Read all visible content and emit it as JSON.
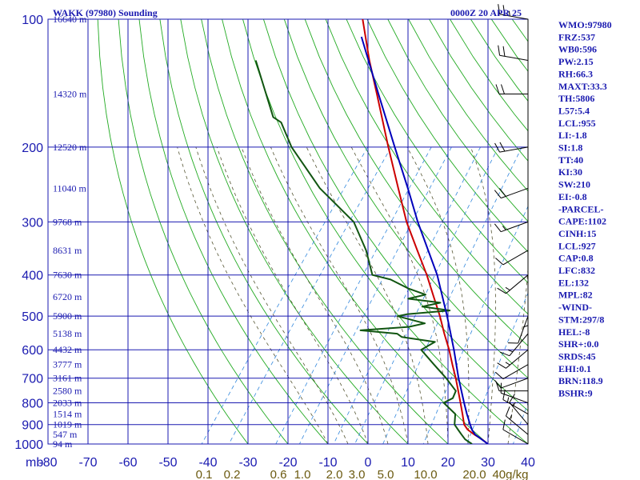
{
  "header": {
    "title": "WAKK (97980) Sounding",
    "datetime": "0000Z 20 APR 25"
  },
  "colors": {
    "grid": "#1a1ab0",
    "dry_adiabat": "#22aa22",
    "moist_adiabat": "#555533",
    "mixing_ratio": "#3388dd",
    "temperature": "#cc0000",
    "dewpoint": "#115511",
    "parcel": "#0000bb",
    "wind": "#000000"
  },
  "chart_data": {
    "type": "skew-t log-p sounding",
    "pressure_axis": {
      "unit": "mb",
      "levels": [
        100,
        200,
        300,
        400,
        500,
        600,
        700,
        800,
        900,
        1000
      ],
      "range": [
        100,
        1000
      ],
      "scale": "log"
    },
    "height_labels": [
      {
        "p": 100,
        "label": "16640 m"
      },
      {
        "p": 150,
        "label": "14320 m"
      },
      {
        "p": 200,
        "label": "12520 m"
      },
      {
        "p": 250,
        "label": "11040 m"
      },
      {
        "p": 300,
        "label": "9768 m"
      },
      {
        "p": 350,
        "label": "8631 m"
      },
      {
        "p": 400,
        "label": "7630 m"
      },
      {
        "p": 450,
        "label": "6720 m"
      },
      {
        "p": 500,
        "label": "5900 m"
      },
      {
        "p": 550,
        "label": "5138 m"
      },
      {
        "p": 600,
        "label": "4432 m"
      },
      {
        "p": 650,
        "label": "3777 m"
      },
      {
        "p": 700,
        "label": "3161 m"
      },
      {
        "p": 750,
        "label": "2580 m"
      },
      {
        "p": 800,
        "label": "2033 m"
      },
      {
        "p": 850,
        "label": "1514 m"
      },
      {
        "p": 900,
        "label": "1019 m"
      },
      {
        "p": 950,
        "label": "547 m"
      },
      {
        "p": 1000,
        "label": "94 m"
      }
    ],
    "temperature_axis": {
      "unit": "C",
      "ticks": [
        -80,
        -70,
        -60,
        -50,
        -40,
        -30,
        -20,
        -10,
        0,
        10,
        20,
        30,
        40
      ],
      "tick_labels": [
        "-80",
        "-70",
        "-60",
        "-50",
        "-40",
        "-30",
        "-20",
        "-10",
        "0",
        "10",
        "20",
        "30",
        "40"
      ],
      "range": [
        -80,
        40
      ]
    },
    "mixing_ratio_labels": [
      "0.1",
      "0.2",
      "0.6",
      "1.0",
      "2.0",
      "3.0",
      "5.0",
      "10.0",
      "20.0",
      "40g/kg"
    ],
    "mixing_ratio_values": [
      0.1,
      0.2,
      0.6,
      1.0,
      2.0,
      3.0,
      5.0,
      10.0,
      20.0,
      40.0
    ],
    "series": [
      {
        "kind": "temperature",
        "points": [
          [
            1000,
            30
          ],
          [
            975,
            27.6
          ],
          [
            950,
            24.8
          ],
          [
            925,
            22.2
          ],
          [
            900,
            20.4
          ],
          [
            850,
            18
          ],
          [
            800,
            15.4
          ],
          [
            750,
            12.6
          ],
          [
            700,
            9.6
          ],
          [
            650,
            6.2
          ],
          [
            600,
            2.6
          ],
          [
            550,
            -1.6
          ],
          [
            500,
            -6
          ],
          [
            450,
            -11.2
          ],
          [
            400,
            -17
          ],
          [
            350,
            -24
          ],
          [
            300,
            -32
          ],
          [
            250,
            -40.4
          ],
          [
            200,
            -50.6
          ],
          [
            150,
            -63.4
          ],
          [
            125,
            -71.6
          ],
          [
            100,
            -81
          ]
        ]
      },
      {
        "kind": "dewpoint",
        "points": [
          [
            1000,
            26
          ],
          [
            975,
            23.4
          ],
          [
            950,
            21.6
          ],
          [
            925,
            19.8
          ],
          [
            900,
            18
          ],
          [
            850,
            16.2
          ],
          [
            800,
            11.2
          ],
          [
            780,
            12.6
          ],
          [
            750,
            12
          ],
          [
            700,
            7.2
          ],
          [
            650,
            1.6
          ],
          [
            600,
            -4.4
          ],
          [
            575,
            -2.4
          ],
          [
            560,
            -11.6
          ],
          [
            550,
            -13.4
          ],
          [
            540,
            -23.2
          ],
          [
            530,
            -11.8
          ],
          [
            520,
            -8.4
          ],
          [
            500,
            -16.6
          ],
          [
            495,
            -14.6
          ],
          [
            485,
            -4.6
          ],
          [
            475,
            -12.2
          ],
          [
            465,
            -8.4
          ],
          [
            455,
            -17.2
          ],
          [
            445,
            -13.6
          ],
          [
            430,
            -19.2
          ],
          [
            410,
            -25.2
          ],
          [
            400,
            -30.6
          ],
          [
            350,
            -36.8
          ],
          [
            300,
            -45.2
          ],
          [
            250,
            -60
          ],
          [
            200,
            -74.8
          ],
          [
            175,
            -82
          ],
          [
            170,
            -85
          ],
          [
            125,
            -100
          ]
        ]
      },
      {
        "kind": "parcel",
        "points": [
          [
            1000,
            30
          ],
          [
            950,
            25
          ],
          [
            927,
            23.4
          ],
          [
            900,
            21.9
          ],
          [
            850,
            19.1
          ],
          [
            800,
            16.3
          ],
          [
            700,
            10.3
          ],
          [
            600,
            3.8
          ],
          [
            500,
            -4.2
          ],
          [
            400,
            -14.4
          ],
          [
            300,
            -29.2
          ],
          [
            250,
            -38
          ],
          [
            200,
            -49
          ],
          [
            150,
            -63
          ],
          [
            110,
            -78
          ]
        ]
      }
    ],
    "wind_barbs": [
      {
        "p": 1000,
        "dir": 300,
        "spd": 10
      },
      {
        "p": 950,
        "dir": 310,
        "spd": 15
      },
      {
        "p": 900,
        "dir": 320,
        "spd": 15
      },
      {
        "p": 850,
        "dir": 300,
        "spd": 15
      },
      {
        "p": 800,
        "dir": 290,
        "spd": 10
      },
      {
        "p": 750,
        "dir": 270,
        "spd": 10
      },
      {
        "p": 700,
        "dir": 250,
        "spd": 10
      },
      {
        "p": 650,
        "dir": 240,
        "spd": 10
      },
      {
        "p": 600,
        "dir": 230,
        "spd": 15
      },
      {
        "p": 550,
        "dir": 220,
        "spd": 15
      },
      {
        "p": 500,
        "dir": 200,
        "spd": 10
      },
      {
        "p": 450,
        "dir": 180,
        "spd": 5
      },
      {
        "p": 400,
        "dir": 230,
        "spd": 15
      },
      {
        "p": 350,
        "dir": 240,
        "spd": 10
      },
      {
        "p": 300,
        "dir": 250,
        "spd": 15
      },
      {
        "p": 250,
        "dir": 250,
        "spd": 20
      },
      {
        "p": 200,
        "dir": 260,
        "spd": 20
      },
      {
        "p": 150,
        "dir": 270,
        "spd": 20
      },
      {
        "p": 125,
        "dir": 280,
        "spd": 20
      },
      {
        "p": 100,
        "dir": 280,
        "spd": 25
      }
    ]
  },
  "indices": [
    "WMO:97980",
    "FRZ:537",
    "WB0:596",
    "PW:2.15",
    "RH:66.3",
    "MAXT:33.3",
    "TH:5806",
    "L57:5.4",
    "LCL:955",
    "LI:-1.8",
    "SI:1.8",
    "TT:40",
    "KI:30",
    "SW:210",
    "EI:-0.8",
    "-PARCEL-",
    "CAPE:1102",
    "CINH:15",
    "LCL:927",
    "CAP:0.8",
    "LFC:832",
    "EL:132",
    "MPL:82",
    "-WIND-",
    "STM:297/8",
    "HEL:-8",
    "SHR+:0.0",
    "SRDS:45",
    "EHI:0.1",
    "BRN:118.9",
    "BSHR:9"
  ]
}
